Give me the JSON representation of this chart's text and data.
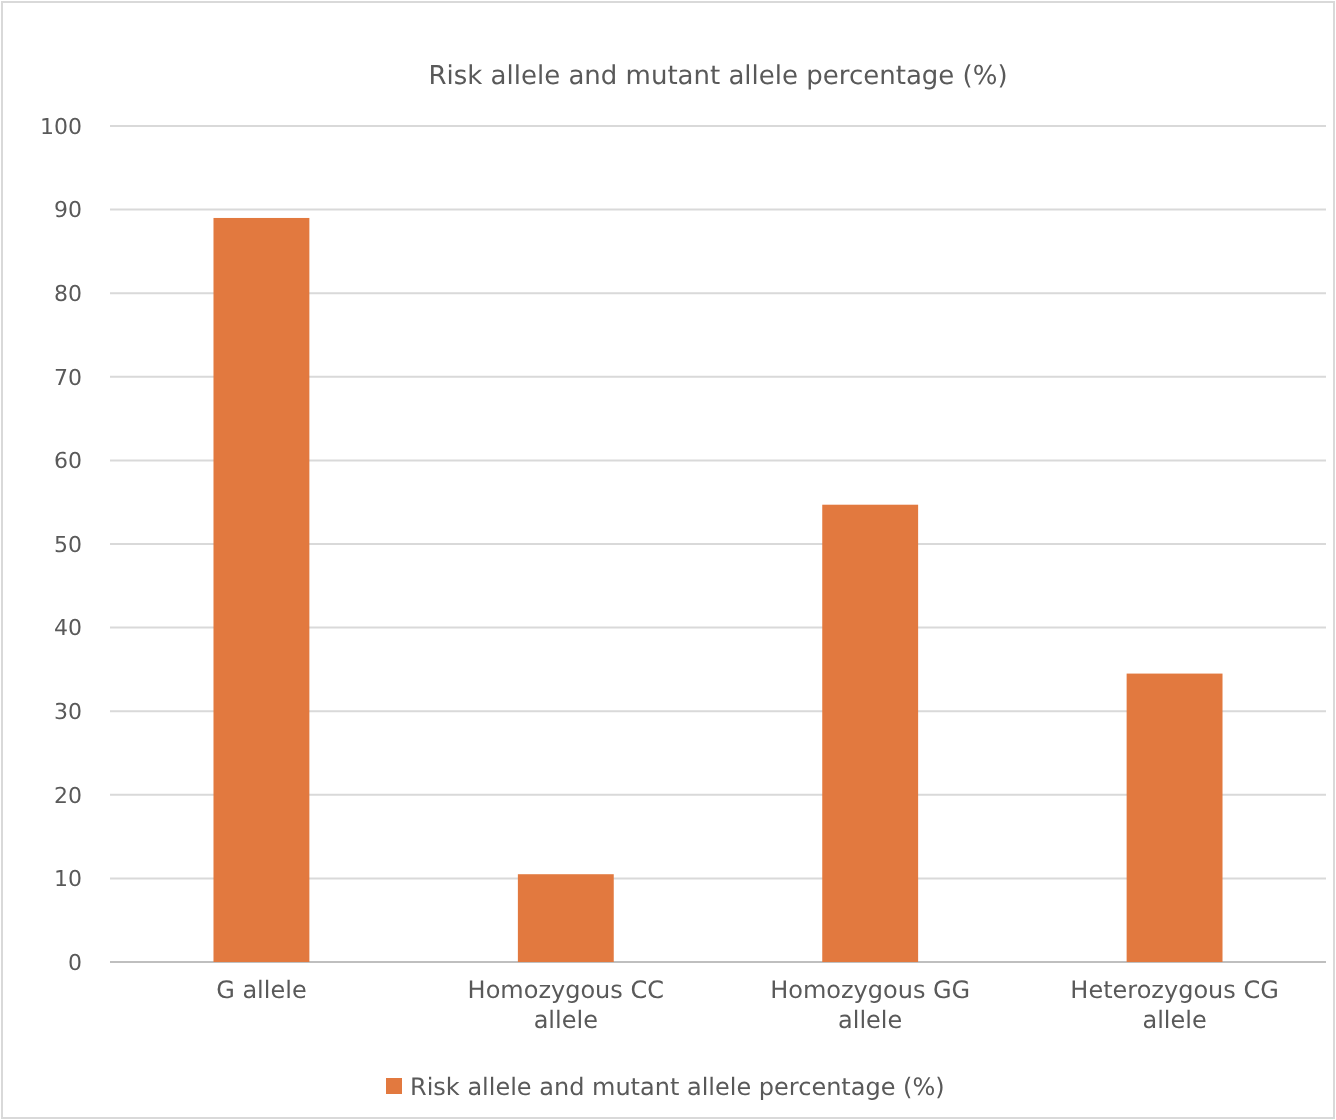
{
  "chart_data": {
    "type": "bar",
    "title": "Risk allele and mutant allele percentage (%)",
    "categories": [
      "G allele",
      "Homozygous CC allele",
      "Homozygous GG allele",
      "Heterozygous CG allele"
    ],
    "series": [
      {
        "name": "Risk allele and mutant allele percentage (%)",
        "color": "#e2793f",
        "values": [
          89,
          10.5,
          54.7,
          34.5
        ]
      }
    ],
    "ylim": [
      0,
      100
    ],
    "yticks": [
      0,
      10,
      20,
      30,
      40,
      50,
      60,
      70,
      80,
      90,
      100
    ],
    "grid": "y",
    "legend": "bottom"
  }
}
